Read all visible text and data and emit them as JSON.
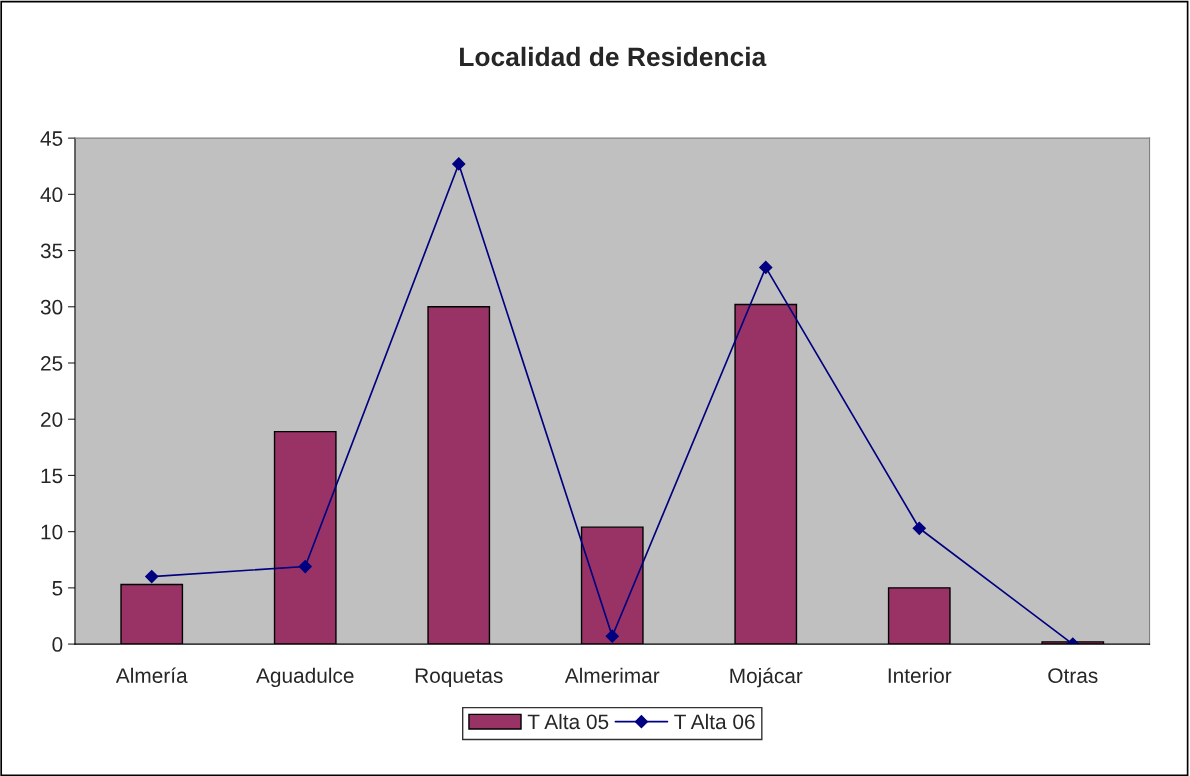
{
  "chart_data": {
    "type": "bar",
    "title": "Localidad de Residencia",
    "categories": [
      "Almería",
      "Aguadulce",
      "Roquetas",
      "Almerimar",
      "Mojácar",
      "Interior",
      "Otras"
    ],
    "series": [
      {
        "name": "T Alta 05",
        "color": "#993366",
        "values": [
          5.3,
          18.9,
          30.0,
          10.4,
          30.2,
          5.0,
          0.2
        ]
      },
      {
        "name": "T Alta 06",
        "type": "line",
        "color": "#000080",
        "marker": "diamond",
        "line_style": "solid",
        "values": [
          6.0,
          6.9,
          42.7,
          0.7,
          33.5,
          10.3,
          0.0
        ]
      }
    ],
    "ylim": [
      0,
      45
    ],
    "yticks": [
      0,
      5,
      10,
      15,
      20,
      25,
      30,
      35,
      40,
      45
    ],
    "grid": false,
    "legend": "bottom"
  }
}
